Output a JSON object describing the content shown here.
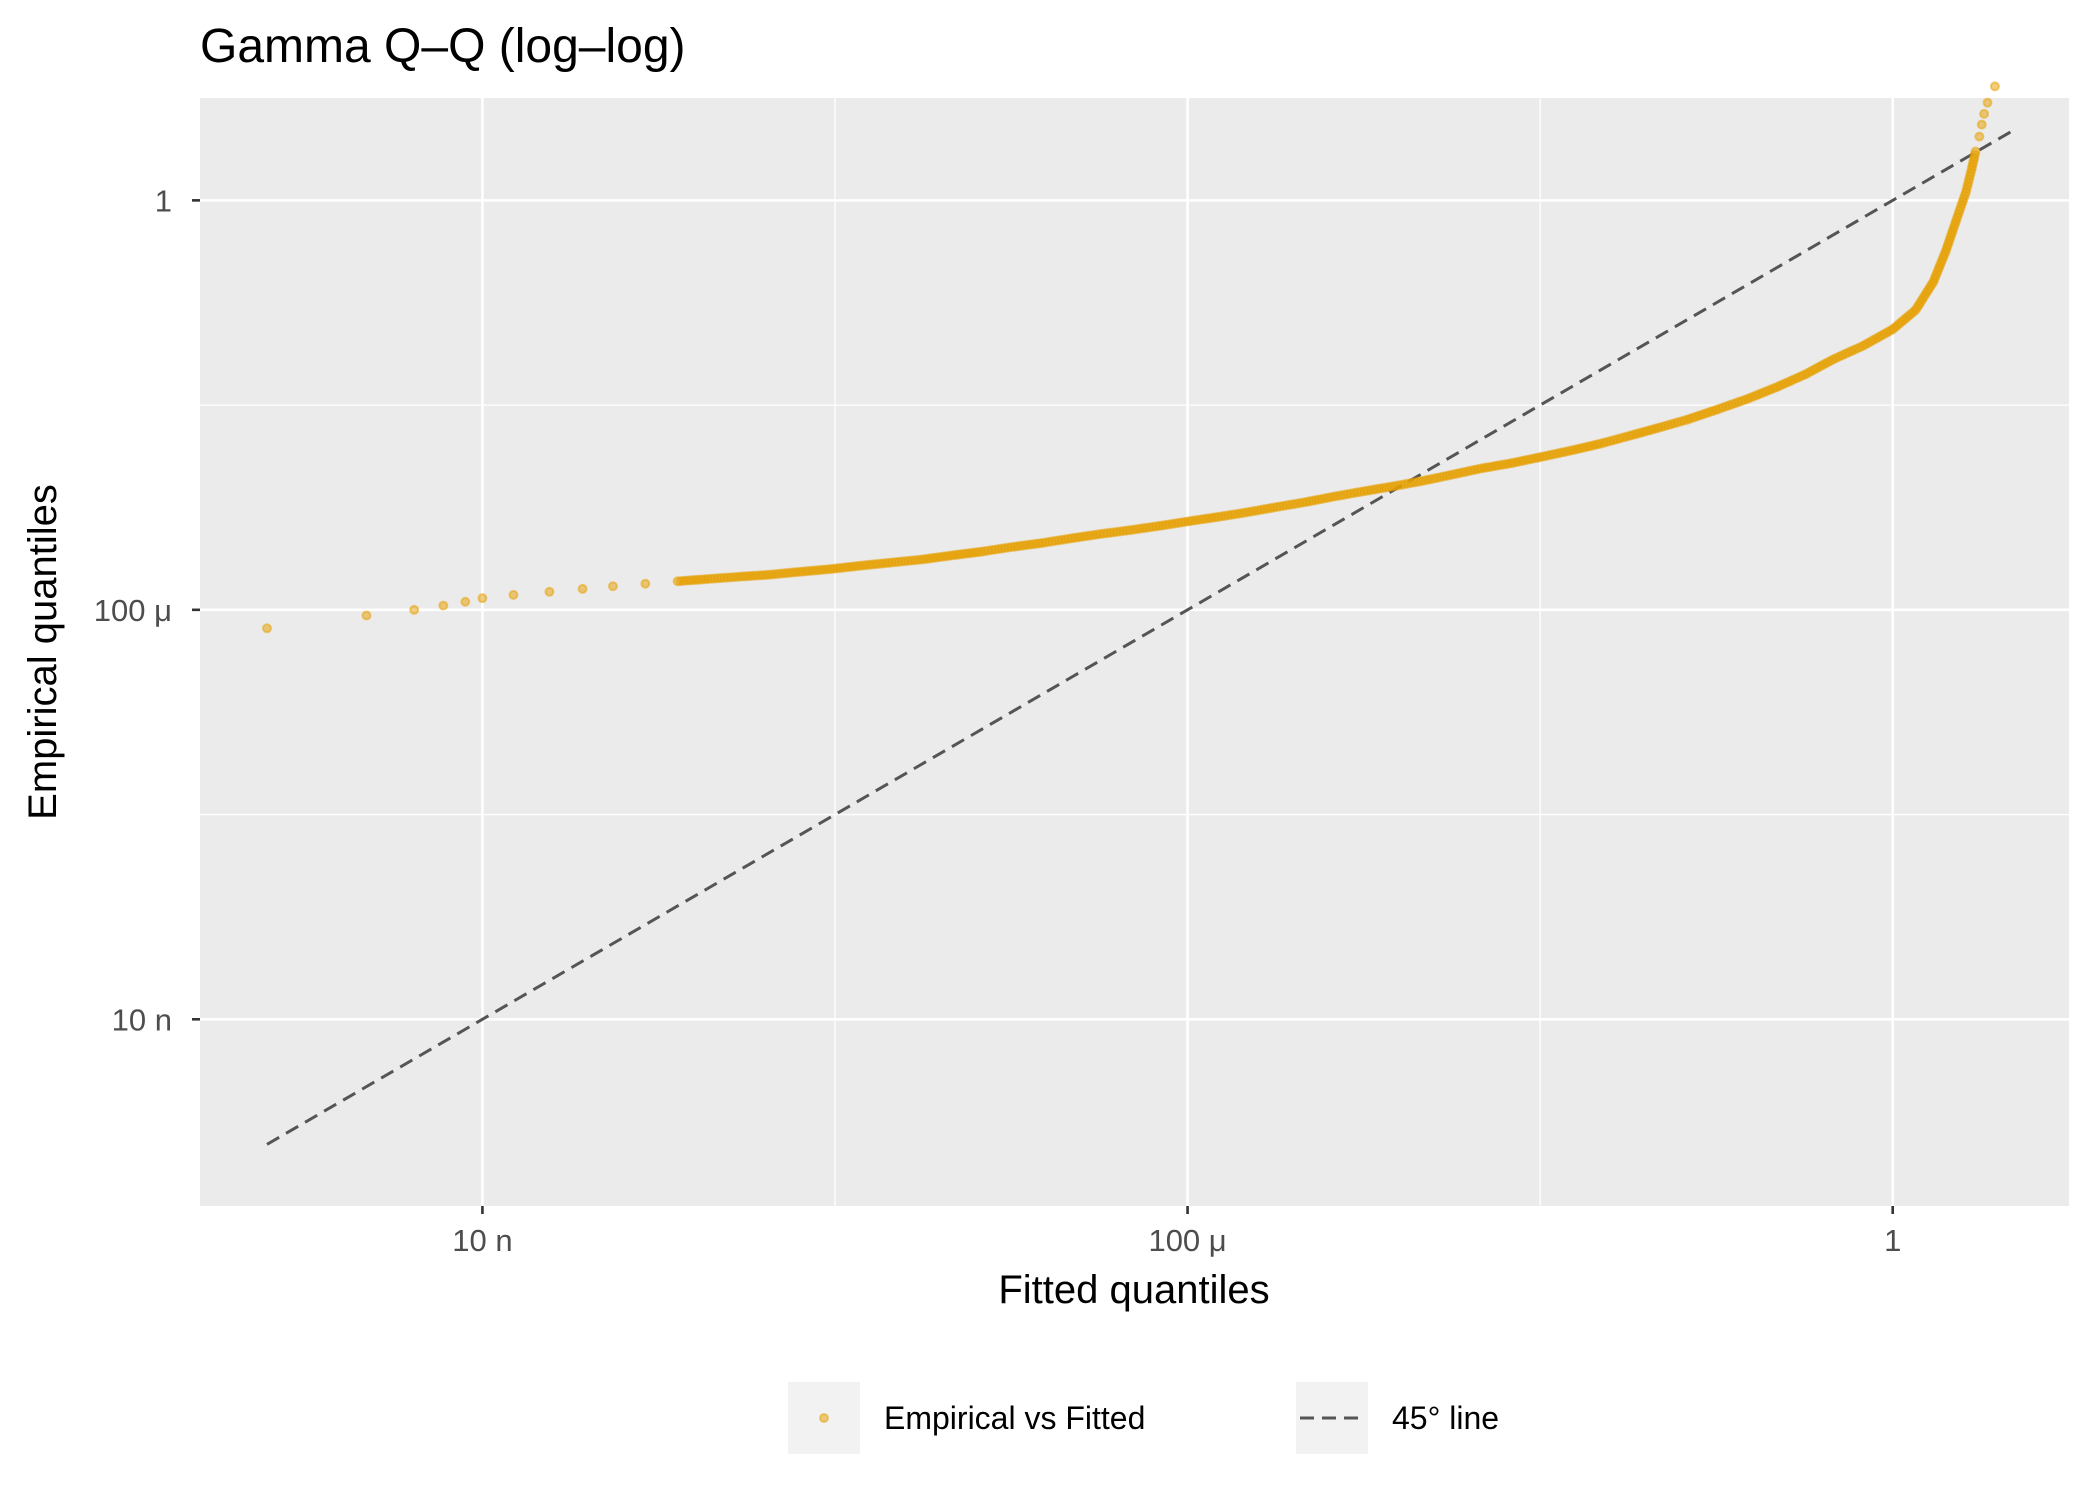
{
  "chart_data": {
    "type": "scatter",
    "title": "Gamma Q–Q (log–log)",
    "xlabel": "Fitted quantiles",
    "ylabel": "Empirical quantiles",
    "x_scale": "log",
    "y_scale": "log",
    "xlim": [
      2.5e-10,
      10
    ],
    "ylim": [
      1.5e-10,
      10
    ],
    "x_ticks": [
      {
        "value": 1e-08,
        "label": "10 n"
      },
      {
        "value": 0.0001,
        "label": "100 μ"
      },
      {
        "value": 1,
        "label": "1"
      }
    ],
    "y_ticks": [
      {
        "value": 1e-08,
        "label": "10 n"
      },
      {
        "value": 0.0001,
        "label": "100 μ"
      },
      {
        "value": 1,
        "label": "1"
      }
    ],
    "grid": true,
    "legend_position": "bottom",
    "series": [
      {
        "name": "Empirical vs Fitted",
        "kind": "points",
        "color": "#E69F00",
        "x": [
          6e-10,
          2.2e-09,
          4.1e-09,
          6e-09,
          8e-09,
          1e-08,
          1.5e-08,
          2.4e-08,
          3.7e-08,
          5.5e-08,
          8.4e-08,
          1.28e-07,
          1.9e-07,
          2.8e-07,
          4.2e-07,
          6.3e-07,
          9.4e-07,
          1.4e-06,
          2.1e-06,
          3.1e-06,
          4.6e-06,
          6.8e-06,
          1e-05,
          1.5e-05,
          2.2e-05,
          3.2e-05,
          4.7e-05,
          6.9e-05,
          0.0001,
          0.00015,
          0.00022,
          0.00032,
          0.00047,
          0.00068,
          0.001,
          0.0015,
          0.0022,
          0.0032,
          0.0046,
          0.0068,
          0.01,
          0.015,
          0.022,
          0.032,
          0.047,
          0.068,
          0.1,
          0.15,
          0.22,
          0.32,
          0.46,
          0.68,
          1.0,
          1.35,
          1.7,
          2.0,
          2.3,
          2.6,
          2.8,
          2.95,
          3.1,
          3.2,
          3.3,
          3.45,
          3.8
        ],
        "y": [
          6.6e-05,
          8.8e-05,
          0.0001,
          0.00011,
          0.00012,
          0.00013,
          0.00014,
          0.00015,
          0.00016,
          0.00017,
          0.00018,
          0.00019,
          0.0002,
          0.00021,
          0.00022,
          0.000235,
          0.00025,
          0.00027,
          0.00029,
          0.00031,
          0.00034,
          0.00037,
          0.00041,
          0.00045,
          0.0005,
          0.00055,
          0.0006,
          0.00066,
          0.00073,
          0.00081,
          0.0009,
          0.00101,
          0.00113,
          0.00128,
          0.00144,
          0.00162,
          0.00183,
          0.0021,
          0.0024,
          0.0027,
          0.0031,
          0.0036,
          0.0042,
          0.005,
          0.006,
          0.0072,
          0.009,
          0.0115,
          0.015,
          0.02,
          0.028,
          0.038,
          0.055,
          0.085,
          0.16,
          0.32,
          0.65,
          1.2,
          2.0,
          3.0,
          4.2,
          5.5,
          7.0,
          9.0,
          13.0
        ]
      },
      {
        "name": "45° line",
        "kind": "dashed-line",
        "color": "#555555",
        "x": [
          6e-10,
          5.0
        ],
        "y": [
          6e-10,
          5.0
        ]
      }
    ],
    "legend": [
      {
        "label": "Empirical vs Fitted",
        "symbol": "point"
      },
      {
        "label": "45° line",
        "symbol": "dashed-line"
      }
    ]
  }
}
